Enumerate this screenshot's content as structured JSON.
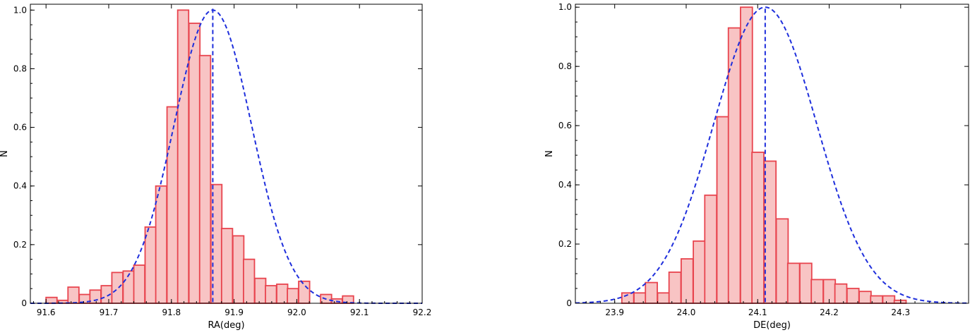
{
  "chart_data": [
    {
      "type": "bar",
      "xlabel": "RA(deg)",
      "ylabel": "N",
      "xlim": [
        91.575,
        92.2
      ],
      "ylim": [
        0,
        1.02
      ],
      "xticks": [
        "91.6",
        "91.7",
        "91.8",
        "91.9",
        "92.0",
        "92.1",
        "92.2"
      ],
      "yticks": [
        "0",
        "0.2",
        "0.4",
        "0.6",
        "0.8",
        "1.0"
      ],
      "bin_width": 0.0175,
      "bins": [
        {
          "x": 91.6,
          "y": 0.02
        },
        {
          "x": 91.618,
          "y": 0.01
        },
        {
          "x": 91.635,
          "y": 0.055
        },
        {
          "x": 91.653,
          "y": 0.03
        },
        {
          "x": 91.67,
          "y": 0.045
        },
        {
          "x": 91.688,
          "y": 0.06
        },
        {
          "x": 91.705,
          "y": 0.105
        },
        {
          "x": 91.723,
          "y": 0.11
        },
        {
          "x": 91.74,
          "y": 0.13
        },
        {
          "x": 91.758,
          "y": 0.26
        },
        {
          "x": 91.775,
          "y": 0.4
        },
        {
          "x": 91.793,
          "y": 0.67
        },
        {
          "x": 91.81,
          "y": 1.0
        },
        {
          "x": 91.828,
          "y": 0.955
        },
        {
          "x": 91.845,
          "y": 0.845
        },
        {
          "x": 91.863,
          "y": 0.405
        },
        {
          "x": 91.88,
          "y": 0.255
        },
        {
          "x": 91.898,
          "y": 0.23
        },
        {
          "x": 91.915,
          "y": 0.15
        },
        {
          "x": 91.933,
          "y": 0.085
        },
        {
          "x": 91.95,
          "y": 0.06
        },
        {
          "x": 91.968,
          "y": 0.065
        },
        {
          "x": 91.985,
          "y": 0.05
        },
        {
          "x": 92.003,
          "y": 0.075
        },
        {
          "x": 92.02,
          "y": 0.0
        },
        {
          "x": 92.038,
          "y": 0.03
        },
        {
          "x": 92.055,
          "y": 0.015
        },
        {
          "x": 92.073,
          "y": 0.025
        }
      ],
      "fit": {
        "type": "gaussian",
        "center": 91.866,
        "sigma": 0.062,
        "amplitude": 1.0
      },
      "vline_x": 91.866,
      "colors": {
        "bar_fill": "#f8c4c4",
        "bar_edge": "#e8444e",
        "fit": "#1f2fdc",
        "vline": "#1f2fdc"
      }
    },
    {
      "type": "bar",
      "xlabel": "DE(deg)",
      "ylabel": "N",
      "xlim": [
        23.845,
        24.395
      ],
      "ylim": [
        0,
        1.01
      ],
      "xticks": [
        "23.9",
        "24.0",
        "24.1",
        "24.2",
        "24.3"
      ],
      "yticks": [
        "0",
        "0.2",
        "0.4",
        "0.6",
        "0.8",
        "1.0"
      ],
      "bin_width": 0.0166,
      "bins": [
        {
          "x": 23.91,
          "y": 0.035
        },
        {
          "x": 23.927,
          "y": 0.035
        },
        {
          "x": 23.943,
          "y": 0.07
        },
        {
          "x": 23.96,
          "y": 0.035
        },
        {
          "x": 23.976,
          "y": 0.105
        },
        {
          "x": 23.993,
          "y": 0.15
        },
        {
          "x": 24.01,
          "y": 0.21
        },
        {
          "x": 24.026,
          "y": 0.365
        },
        {
          "x": 24.043,
          "y": 0.63
        },
        {
          "x": 24.059,
          "y": 0.93
        },
        {
          "x": 24.076,
          "y": 1.0
        },
        {
          "x": 24.092,
          "y": 0.51
        },
        {
          "x": 24.109,
          "y": 0.48
        },
        {
          "x": 24.126,
          "y": 0.285
        },
        {
          "x": 24.142,
          "y": 0.135
        },
        {
          "x": 24.159,
          "y": 0.135
        },
        {
          "x": 24.175,
          "y": 0.08
        },
        {
          "x": 24.192,
          "y": 0.08
        },
        {
          "x": 24.208,
          "y": 0.065
        },
        {
          "x": 24.225,
          "y": 0.05
        },
        {
          "x": 24.242,
          "y": 0.04
        },
        {
          "x": 24.258,
          "y": 0.025
        },
        {
          "x": 24.275,
          "y": 0.025
        },
        {
          "x": 24.291,
          "y": 0.01
        }
      ],
      "fit": {
        "type": "gaussian",
        "center": 24.1105,
        "sigma": 0.072,
        "amplitude": 1.0
      },
      "vline_x": 24.1105,
      "colors": {
        "bar_fill": "#f8c4c4",
        "bar_edge": "#e8444e",
        "fit": "#1f2fdc",
        "vline": "#1f2fdc"
      }
    }
  ]
}
